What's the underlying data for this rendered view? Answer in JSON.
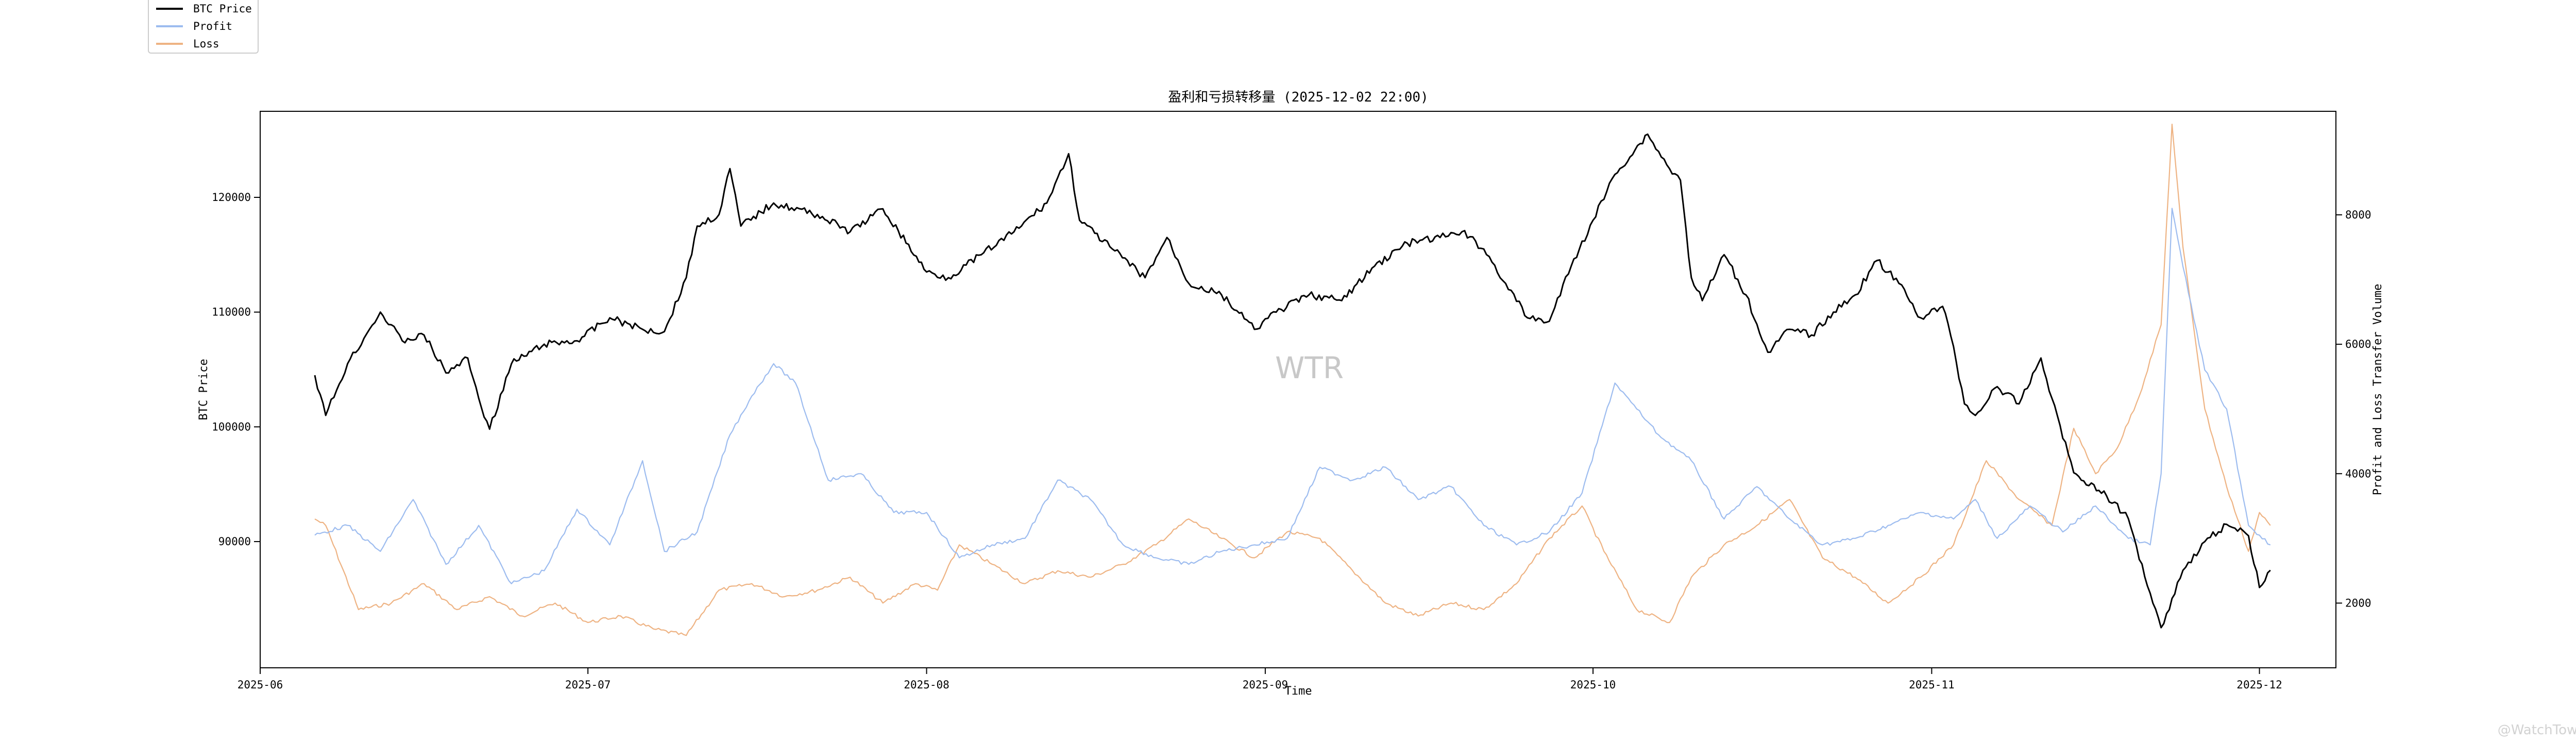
{
  "chart_data": {
    "type": "line",
    "title": "盈利和亏损转移量 (2025-12-02 22:00)",
    "xlabel": "Time",
    "ylabel_left": "BTC Price",
    "ylabel_right": "Profit and Loss Transfer Volume",
    "x_range": [
      "2025-06-01",
      "2025-12-08"
    ],
    "ylim_left": [
      79000,
      127500
    ],
    "ylim_right": [
      1000,
      9600
    ],
    "x_ticks": [
      "2025-06",
      "2025-07",
      "2025-08",
      "2025-09",
      "2025-10",
      "2025-11",
      "2025-12"
    ],
    "y_ticks_left": [
      "90000",
      "100000",
      "110000",
      "120000"
    ],
    "y_ticks_right": [
      "2000",
      "4000",
      "6000",
      "8000"
    ],
    "grid": false,
    "legend_position": "top-left",
    "legend": [
      {
        "name": "BTC Price",
        "color": "#000000"
      },
      {
        "name": "Profit",
        "color": "#9dbcef"
      },
      {
        "name": "Loss",
        "color": "#eeb383"
      }
    ],
    "series": [
      {
        "name": "BTC Price",
        "axis": "left",
        "color": "#000000",
        "points": [
          [
            "2025-06-06",
            104500
          ],
          [
            "2025-06-07",
            101000
          ],
          [
            "2025-06-09",
            105500
          ],
          [
            "2025-06-11",
            108500
          ],
          [
            "2025-06-12",
            110000
          ],
          [
            "2025-06-14",
            107500
          ],
          [
            "2025-06-16",
            108000
          ],
          [
            "2025-06-18",
            104700
          ],
          [
            "2025-06-20",
            106000
          ],
          [
            "2025-06-21",
            102500
          ],
          [
            "2025-06-22",
            99800
          ],
          [
            "2025-06-24",
            105500
          ],
          [
            "2025-06-27",
            107200
          ],
          [
            "2025-06-30",
            107500
          ],
          [
            "2025-07-03",
            109500
          ],
          [
            "2025-07-06",
            108500
          ],
          [
            "2025-07-08",
            108300
          ],
          [
            "2025-07-10",
            113000
          ],
          [
            "2025-07-11",
            117500
          ],
          [
            "2025-07-13",
            118500
          ],
          [
            "2025-07-14",
            122500
          ],
          [
            "2025-07-15",
            117500
          ],
          [
            "2025-07-18",
            119500
          ],
          [
            "2025-07-22",
            118500
          ],
          [
            "2025-07-25",
            117000
          ],
          [
            "2025-07-28",
            119000
          ],
          [
            "2025-08-01",
            113500
          ],
          [
            "2025-08-03",
            113000
          ],
          [
            "2025-08-06",
            115000
          ],
          [
            "2025-08-09",
            117000
          ],
          [
            "2025-08-12",
            119500
          ],
          [
            "2025-08-14",
            123800
          ],
          [
            "2025-08-15",
            118000
          ],
          [
            "2025-08-18",
            115500
          ],
          [
            "2025-08-21",
            113000
          ],
          [
            "2025-08-23",
            116500
          ],
          [
            "2025-08-25",
            112500
          ],
          [
            "2025-08-28",
            111500
          ],
          [
            "2025-08-31",
            108500
          ],
          [
            "2025-09-02",
            110000
          ],
          [
            "2025-09-05",
            111500
          ],
          [
            "2025-09-08",
            111000
          ],
          [
            "2025-09-11",
            114000
          ],
          [
            "2025-09-14",
            116000
          ],
          [
            "2025-09-17",
            116500
          ],
          [
            "2025-09-19",
            117000
          ],
          [
            "2025-09-21",
            115500
          ],
          [
            "2025-09-23",
            112500
          ],
          [
            "2025-09-25",
            109500
          ],
          [
            "2025-09-27",
            109200
          ],
          [
            "2025-09-29",
            114000
          ],
          [
            "2025-10-01",
            118000
          ],
          [
            "2025-10-03",
            122000
          ],
          [
            "2025-10-06",
            125500
          ],
          [
            "2025-10-08",
            122500
          ],
          [
            "2025-10-09",
            121500
          ],
          [
            "2025-10-10",
            113000
          ],
          [
            "2025-10-11",
            111000
          ],
          [
            "2025-10-13",
            115000
          ],
          [
            "2025-10-15",
            111500
          ],
          [
            "2025-10-17",
            106500
          ],
          [
            "2025-10-19",
            108500
          ],
          [
            "2025-10-21",
            108000
          ],
          [
            "2025-10-23",
            110000
          ],
          [
            "2025-10-25",
            111500
          ],
          [
            "2025-10-27",
            114500
          ],
          [
            "2025-10-29",
            112500
          ],
          [
            "2025-10-31",
            109500
          ],
          [
            "2025-11-02",
            110500
          ],
          [
            "2025-11-03",
            107000
          ],
          [
            "2025-11-04",
            102000
          ],
          [
            "2025-11-05",
            101000
          ],
          [
            "2025-11-07",
            103500
          ],
          [
            "2025-11-09",
            102000
          ],
          [
            "2025-11-11",
            106000
          ],
          [
            "2025-11-12",
            102500
          ],
          [
            "2025-11-14",
            96000
          ],
          [
            "2025-11-17",
            94000
          ],
          [
            "2025-11-19",
            92000
          ],
          [
            "2025-11-21",
            85500
          ],
          [
            "2025-11-22",
            82500
          ],
          [
            "2025-11-24",
            87500
          ],
          [
            "2025-11-26",
            90000
          ],
          [
            "2025-11-28",
            91500
          ],
          [
            "2025-11-30",
            90500
          ],
          [
            "2025-12-01",
            86000
          ],
          [
            "2025-12-02",
            87500
          ]
        ]
      },
      {
        "name": "Profit",
        "axis": "right",
        "color": "#9dbcef",
        "points": [
          [
            "2025-06-06",
            3050
          ],
          [
            "2025-06-09",
            3200
          ],
          [
            "2025-06-12",
            2800
          ],
          [
            "2025-06-15",
            3600
          ],
          [
            "2025-06-18",
            2600
          ],
          [
            "2025-06-21",
            3200
          ],
          [
            "2025-06-24",
            2300
          ],
          [
            "2025-06-27",
            2500
          ],
          [
            "2025-06-30",
            3450
          ],
          [
            "2025-07-03",
            2900
          ],
          [
            "2025-07-06",
            4200
          ],
          [
            "2025-07-08",
            2800
          ],
          [
            "2025-07-11",
            3100
          ],
          [
            "2025-07-14",
            4600
          ],
          [
            "2025-07-16",
            5200
          ],
          [
            "2025-07-18",
            5700
          ],
          [
            "2025-07-20",
            5400
          ],
          [
            "2025-07-23",
            3900
          ],
          [
            "2025-07-26",
            4000
          ],
          [
            "2025-07-29",
            3400
          ],
          [
            "2025-08-01",
            3400
          ],
          [
            "2025-08-04",
            2700
          ],
          [
            "2025-08-07",
            2900
          ],
          [
            "2025-08-10",
            3000
          ],
          [
            "2025-08-13",
            3900
          ],
          [
            "2025-08-16",
            3600
          ],
          [
            "2025-08-19",
            2900
          ],
          [
            "2025-08-22",
            2700
          ],
          [
            "2025-08-25",
            2600
          ],
          [
            "2025-08-28",
            2800
          ],
          [
            "2025-08-31",
            2900
          ],
          [
            "2025-09-03",
            3000
          ],
          [
            "2025-09-06",
            4100
          ],
          [
            "2025-09-09",
            3900
          ],
          [
            "2025-09-12",
            4100
          ],
          [
            "2025-09-15",
            3600
          ],
          [
            "2025-09-18",
            3800
          ],
          [
            "2025-09-21",
            3200
          ],
          [
            "2025-09-24",
            2900
          ],
          [
            "2025-09-27",
            3100
          ],
          [
            "2025-09-30",
            3700
          ],
          [
            "2025-10-03",
            5400
          ],
          [
            "2025-10-05",
            5000
          ],
          [
            "2025-10-07",
            4600
          ],
          [
            "2025-10-10",
            4200
          ],
          [
            "2025-10-13",
            3300
          ],
          [
            "2025-10-16",
            3800
          ],
          [
            "2025-10-19",
            3300
          ],
          [
            "2025-10-22",
            2900
          ],
          [
            "2025-10-25",
            3000
          ],
          [
            "2025-10-28",
            3200
          ],
          [
            "2025-10-31",
            3400
          ],
          [
            "2025-11-03",
            3300
          ],
          [
            "2025-11-05",
            3600
          ],
          [
            "2025-11-07",
            3000
          ],
          [
            "2025-11-10",
            3500
          ],
          [
            "2025-11-13",
            3100
          ],
          [
            "2025-11-16",
            3500
          ],
          [
            "2025-11-19",
            3000
          ],
          [
            "2025-11-21",
            2900
          ],
          [
            "2025-11-22",
            4000
          ],
          [
            "2025-11-23",
            8100
          ],
          [
            "2025-11-24",
            7200
          ],
          [
            "2025-11-26",
            5600
          ],
          [
            "2025-11-28",
            5000
          ],
          [
            "2025-11-30",
            3200
          ],
          [
            "2025-12-02",
            2900
          ]
        ]
      },
      {
        "name": "Loss",
        "axis": "right",
        "color": "#eeb383",
        "points": [
          [
            "2025-06-06",
            3300
          ],
          [
            "2025-06-07",
            3200
          ],
          [
            "2025-06-10",
            1900
          ],
          [
            "2025-06-13",
            2000
          ],
          [
            "2025-06-16",
            2300
          ],
          [
            "2025-06-19",
            1900
          ],
          [
            "2025-06-22",
            2100
          ],
          [
            "2025-06-25",
            1800
          ],
          [
            "2025-06-28",
            2000
          ],
          [
            "2025-07-01",
            1700
          ],
          [
            "2025-07-04",
            1800
          ],
          [
            "2025-07-07",
            1600
          ],
          [
            "2025-07-10",
            1500
          ],
          [
            "2025-07-13",
            2200
          ],
          [
            "2025-07-16",
            2300
          ],
          [
            "2025-07-19",
            2100
          ],
          [
            "2025-07-22",
            2200
          ],
          [
            "2025-07-25",
            2400
          ],
          [
            "2025-07-28",
            2000
          ],
          [
            "2025-07-31",
            2300
          ],
          [
            "2025-08-02",
            2200
          ],
          [
            "2025-08-04",
            2900
          ],
          [
            "2025-08-07",
            2600
          ],
          [
            "2025-08-10",
            2300
          ],
          [
            "2025-08-13",
            2500
          ],
          [
            "2025-08-16",
            2400
          ],
          [
            "2025-08-19",
            2600
          ],
          [
            "2025-08-22",
            2900
          ],
          [
            "2025-08-25",
            3300
          ],
          [
            "2025-08-28",
            3000
          ],
          [
            "2025-08-31",
            2700
          ],
          [
            "2025-09-03",
            3100
          ],
          [
            "2025-09-06",
            3000
          ],
          [
            "2025-09-09",
            2500
          ],
          [
            "2025-09-12",
            2000
          ],
          [
            "2025-09-15",
            1800
          ],
          [
            "2025-09-18",
            2000
          ],
          [
            "2025-09-21",
            1900
          ],
          [
            "2025-09-24",
            2300
          ],
          [
            "2025-09-27",
            3000
          ],
          [
            "2025-09-30",
            3500
          ],
          [
            "2025-10-02",
            2800
          ],
          [
            "2025-10-05",
            1900
          ],
          [
            "2025-10-08",
            1700
          ],
          [
            "2025-10-10",
            2400
          ],
          [
            "2025-10-13",
            2900
          ],
          [
            "2025-10-16",
            3200
          ],
          [
            "2025-10-19",
            3600
          ],
          [
            "2025-10-22",
            2700
          ],
          [
            "2025-10-25",
            2400
          ],
          [
            "2025-10-28",
            2000
          ],
          [
            "2025-10-31",
            2400
          ],
          [
            "2025-11-03",
            2900
          ],
          [
            "2025-11-06",
            4200
          ],
          [
            "2025-11-09",
            3600
          ],
          [
            "2025-11-12",
            3200
          ],
          [
            "2025-11-14",
            4700
          ],
          [
            "2025-11-16",
            4000
          ],
          [
            "2025-11-18",
            4400
          ],
          [
            "2025-11-20",
            5200
          ],
          [
            "2025-11-22",
            6300
          ],
          [
            "2025-11-23",
            9400
          ],
          [
            "2025-11-24",
            7500
          ],
          [
            "2025-11-26",
            5000
          ],
          [
            "2025-11-28",
            3800
          ],
          [
            "2025-11-30",
            2800
          ],
          [
            "2025-12-01",
            3400
          ],
          [
            "2025-12-02",
            3200
          ]
        ]
      }
    ]
  },
  "watermark": "WTR",
  "footer_mark": "@WatchTower"
}
